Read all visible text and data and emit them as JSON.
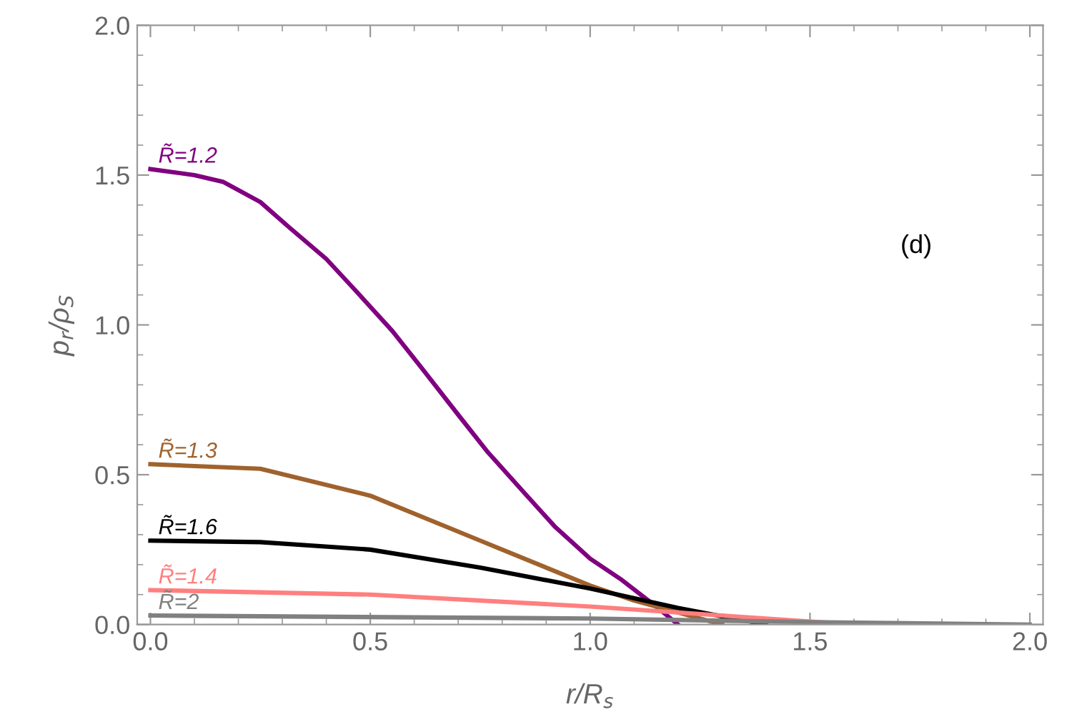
{
  "chart_data": {
    "type": "line",
    "xlabel": "r/R$_{s}$",
    "ylabel": "p$_{r}$/ρ$_{S}$",
    "xlim": [
      -0.03,
      2.03
    ],
    "ylim": [
      0,
      2
    ],
    "xticks": [
      {
        "value": 0,
        "label": "0.0"
      },
      0.5,
      {
        "value": 1,
        "label": "1.0"
      },
      1.5,
      {
        "value": 2,
        "label": "2.0"
      }
    ],
    "yticks": [
      {
        "value": 0,
        "label": "0.0"
      },
      0.5,
      {
        "value": 1,
        "label": "1.0"
      },
      1.5,
      {
        "value": 2,
        "label": "2.0"
      }
    ],
    "grid": false,
    "legend": false,
    "marker": "none",
    "line_style": "solid",
    "annotations": [
      "(d)"
    ],
    "series": [
      {
        "name": "R̃=1.2",
        "color": "#800080",
        "x": [
          0,
          0.1,
          0.166,
          0.25,
          0.316,
          0.4,
          0.467,
          0.55,
          0.617,
          0.7,
          0.768,
          0.85,
          0.919,
          1.0,
          1.069,
          1.15,
          1.2
        ],
        "values": [
          1.52,
          1.5,
          1.477,
          1.41,
          1.325,
          1.22,
          1.114,
          0.98,
          0.856,
          0.7,
          0.574,
          0.44,
          0.328,
          0.22,
          0.152,
          0.06,
          0
        ]
      },
      {
        "name": "R̃=1.3",
        "color": "#a0622d",
        "x": [
          0,
          0.25,
          0.5,
          0.75,
          1.0,
          1.1,
          1.2,
          1.3
        ],
        "values": [
          0.535,
          0.52,
          0.43,
          0.28,
          0.13,
          0.08,
          0.04,
          0
        ]
      },
      {
        "name": "R̃=1.6",
        "color": "#000000",
        "x": [
          0,
          0.25,
          0.5,
          0.75,
          1.0,
          1.2,
          1.4
        ],
        "values": [
          0.28,
          0.275,
          0.25,
          0.19,
          0.12,
          0.055,
          0
        ]
      },
      {
        "name": "R̃=1.4",
        "color": "#ff7f7f",
        "x": [
          0,
          0.5,
          1.0,
          1.3,
          1.6
        ],
        "values": [
          0.115,
          0.1,
          0.06,
          0.03,
          0
        ]
      },
      {
        "name": "R̃=2",
        "color": "#808080",
        "x": [
          0,
          1.0,
          1.5,
          2.0
        ],
        "values": [
          0.03,
          0.02,
          0.008,
          0
        ]
      }
    ]
  }
}
